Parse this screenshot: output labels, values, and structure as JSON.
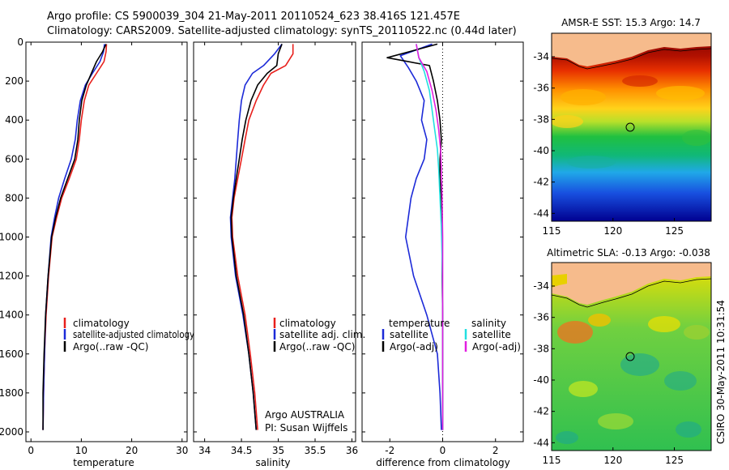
{
  "title": {
    "line1": "Argo profile: CS 5900039_304 21-May-2011 20110524_623 38.416S 121.457E",
    "line2": "Climatology: CARS2009. Satellite-adjusted climatology: synTS_20110522.nc (0.44d later)"
  },
  "side_label": "CSIRO 30-May-2011 10:31:54",
  "colors": {
    "red": "#e8201c",
    "blue": "#1c2ad8",
    "black": "#000000",
    "cyan": "#22dfe0",
    "magenta": "#e21ee0",
    "land": "#f6bb8c"
  },
  "chart_data": [
    {
      "type": "line",
      "id": "temperature",
      "xlabel": "temperature",
      "ylabel": "",
      "xlim": [
        -1,
        31
      ],
      "ylim": [
        2050,
        0
      ],
      "xticks": [
        0,
        10,
        20,
        30
      ],
      "yticks": [
        0,
        200,
        400,
        600,
        800,
        1000,
        1200,
        1400,
        1600,
        1800,
        2000
      ],
      "legend": [
        "climatology",
        "satellite-adjusted climatology",
        "Argo(..raw -QC)"
      ],
      "series": [
        {
          "name": "climatology",
          "color": "red",
          "x": [
            15.0,
            14.9,
            14.5,
            13.0,
            11.5,
            10.6,
            10.0,
            9.6,
            9.0,
            7.6,
            6.1,
            5.1,
            4.2,
            3.5,
            3.0,
            2.7,
            2.5,
            2.4
          ],
          "y": [
            10,
            50,
            100,
            160,
            220,
            300,
            400,
            500,
            600,
            700,
            800,
            900,
            1000,
            1200,
            1400,
            1600,
            1800,
            1990
          ]
        },
        {
          "name": "satellite-adjusted climatology",
          "color": "blue",
          "x": [
            14.6,
            14.4,
            13.7,
            12.2,
            10.8,
            9.8,
            9.2,
            8.8,
            8.0,
            6.7,
            5.5,
            4.7,
            4.0,
            3.4,
            2.9,
            2.7,
            2.5,
            2.4
          ],
          "y": [
            10,
            50,
            100,
            160,
            220,
            300,
            400,
            500,
            600,
            700,
            800,
            900,
            1000,
            1200,
            1400,
            1600,
            1800,
            1990
          ]
        },
        {
          "name": "Argo(..raw -QC)",
          "color": "black",
          "x": [
            14.9,
            14.2,
            13.0,
            12.0,
            11.0,
            10.1,
            9.6,
            9.3,
            8.7,
            7.3,
            5.9,
            4.9,
            4.1,
            3.4,
            2.9,
            2.6,
            2.4,
            2.4
          ],
          "y": [
            10,
            50,
            100,
            160,
            220,
            300,
            400,
            500,
            600,
            700,
            800,
            900,
            1000,
            1200,
            1400,
            1600,
            1800,
            1990
          ]
        }
      ]
    },
    {
      "type": "line",
      "id": "salinity",
      "xlabel": "salinity",
      "ylabel": "",
      "xlim": [
        33.85,
        36.05
      ],
      "ylim": [
        2050,
        0
      ],
      "xticks": [
        34,
        34.5,
        35,
        35.5,
        36
      ],
      "yticks": [
        0,
        200,
        400,
        600,
        800,
        1000,
        1200,
        1400,
        1600,
        1800,
        2000
      ],
      "legend": [
        "climatology",
        "satellite adj. clim.",
        "Argo(..raw -QC)"
      ],
      "annotations": [
        "Argo AUSTRALIA",
        "PI: Susan Wijffels"
      ],
      "series": [
        {
          "name": "climatology",
          "color": "red",
          "x": [
            35.2,
            35.2,
            35.1,
            34.9,
            34.8,
            34.7,
            34.6,
            34.55,
            34.5,
            34.45,
            34.4,
            34.37,
            34.38,
            34.45,
            34.55,
            34.62,
            34.68,
            34.72
          ],
          "y": [
            10,
            60,
            120,
            160,
            220,
            300,
            400,
            500,
            600,
            700,
            800,
            900,
            1000,
            1200,
            1400,
            1600,
            1800,
            1990
          ]
        },
        {
          "name": "satellite adj. clim.",
          "color": "blue",
          "x": [
            35.05,
            34.95,
            34.8,
            34.65,
            34.55,
            34.5,
            34.47,
            34.45,
            34.43,
            34.41,
            34.38,
            34.35,
            34.36,
            34.42,
            34.52,
            34.6,
            34.66,
            34.7
          ],
          "y": [
            10,
            60,
            120,
            160,
            220,
            300,
            400,
            500,
            600,
            700,
            800,
            900,
            1000,
            1200,
            1400,
            1600,
            1800,
            1990
          ]
        },
        {
          "name": "Argo(..raw -QC)",
          "color": "black",
          "x": [
            35.05,
            35.0,
            34.98,
            34.85,
            34.72,
            34.63,
            34.56,
            34.51,
            34.47,
            34.43,
            34.39,
            34.36,
            34.37,
            34.43,
            34.53,
            34.6,
            34.66,
            34.7
          ],
          "y": [
            10,
            60,
            120,
            160,
            220,
            300,
            400,
            500,
            600,
            700,
            800,
            900,
            1000,
            1200,
            1400,
            1600,
            1800,
            1990
          ]
        }
      ]
    },
    {
      "type": "line",
      "id": "difference",
      "xlabel": "difference from climatology",
      "ylabel": "",
      "xlim": [
        -3.05,
        3.05
      ],
      "ylim": [
        2050,
        0
      ],
      "xticks": [
        -2,
        0,
        2
      ],
      "yticks": [
        0,
        200,
        400,
        600,
        800,
        1000,
        1200,
        1400,
        1600,
        1800,
        2000
      ],
      "legend_groups": [
        {
          "title": "temperature",
          "items": [
            "satellite",
            "Argo(-adj)"
          ]
        },
        {
          "title": "salinity",
          "items": [
            "satellite",
            "Argo(-adj)"
          ]
        }
      ],
      "series": [
        {
          "name": "temperature satellite",
          "color": "blue",
          "x": [
            -0.4,
            -1.6,
            -1.3,
            -1.0,
            -0.7,
            -0.8,
            -0.6,
            -0.7,
            -1.0,
            -1.2,
            -1.3,
            -1.4,
            -1.1,
            -0.6,
            -0.2,
            -0.1,
            -0.05
          ],
          "y": [
            10,
            70,
            130,
            200,
            300,
            400,
            500,
            600,
            700,
            800,
            900,
            1000,
            1200,
            1400,
            1600,
            1800,
            1990
          ]
        },
        {
          "name": "temperature Argo(-adj)",
          "color": "black",
          "x": [
            -0.2,
            -2.1,
            -0.5,
            -0.35,
            -0.2,
            -0.1,
            -0.05,
            -0.1,
            -0.1,
            -0.05,
            -0.02,
            -0.02,
            -0.02,
            0.0,
            0.0,
            0.0
          ],
          "y": [
            10,
            80,
            120,
            200,
            300,
            400,
            500,
            600,
            700,
            800,
            900,
            1000,
            1200,
            1400,
            1700,
            1990
          ]
        },
        {
          "name": "salinity satellite",
          "color": "cyan",
          "x": [
            -1.0,
            -0.9,
            -0.7,
            -0.5,
            -0.4,
            -0.3,
            -0.2,
            -0.15,
            -0.1,
            -0.05,
            -0.02,
            0.0,
            0.0,
            0.0
          ],
          "y": [
            10,
            80,
            150,
            250,
            350,
            450,
            550,
            650,
            800,
            950,
            1100,
            1400,
            1700,
            1990
          ]
        },
        {
          "name": "salinity Argo(-adj)",
          "color": "magenta",
          "x": [
            -1.0,
            -0.9,
            -0.6,
            -0.4,
            -0.25,
            -0.15,
            -0.08,
            -0.05,
            -0.02,
            0.0,
            0.0,
            0.0
          ],
          "y": [
            10,
            80,
            150,
            250,
            350,
            450,
            550,
            650,
            800,
            1000,
            1400,
            1990
          ]
        }
      ]
    },
    {
      "type": "heatmap",
      "id": "sst_map",
      "title": "AMSR-E SST: 15.3 Argo: 14.7",
      "xlim": [
        115,
        128
      ],
      "ylim": [
        -44.5,
        -32.5
      ],
      "xticks": [
        115,
        120,
        125
      ],
      "yticks": [
        -34,
        -36,
        -38,
        -40,
        -42,
        -44
      ],
      "marker": {
        "lon": 121.457,
        "lat": -38.416
      }
    },
    {
      "type": "heatmap",
      "id": "sla_map",
      "title": "Altimetric SLA: -0.13 Argo: -0.038",
      "xlim": [
        115,
        128
      ],
      "ylim": [
        -44.5,
        -32.5
      ],
      "xticks": [
        115,
        120,
        125
      ],
      "yticks": [
        -34,
        -36,
        -38,
        -40,
        -42,
        -44
      ],
      "marker": {
        "lon": 121.457,
        "lat": -38.416
      }
    }
  ]
}
